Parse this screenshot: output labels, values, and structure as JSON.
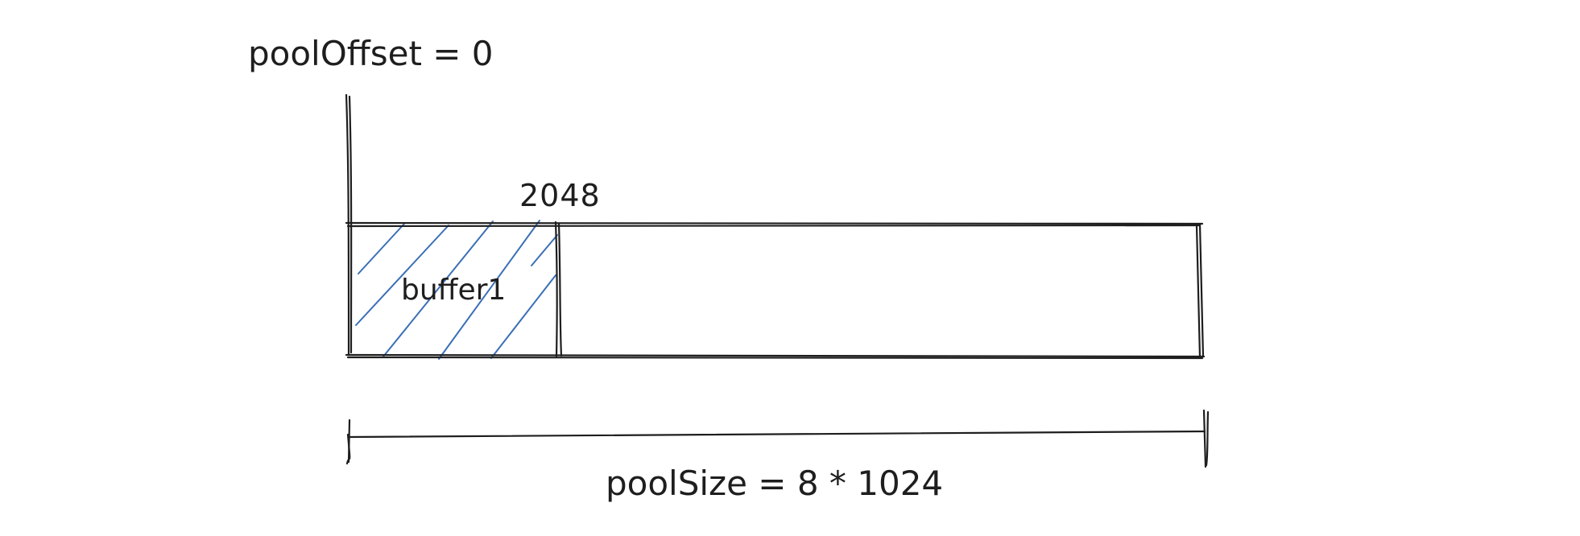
{
  "labels": {
    "pool_offset": "poolOffset = 0",
    "buffer_end": "2048",
    "buffer_name": "buffer1",
    "pool_size": "poolSize = 8 * 1024"
  },
  "colors": {
    "stroke": "#1e1e1e",
    "hatch": "#3b6fb6",
    "background": "#ffffff"
  }
}
